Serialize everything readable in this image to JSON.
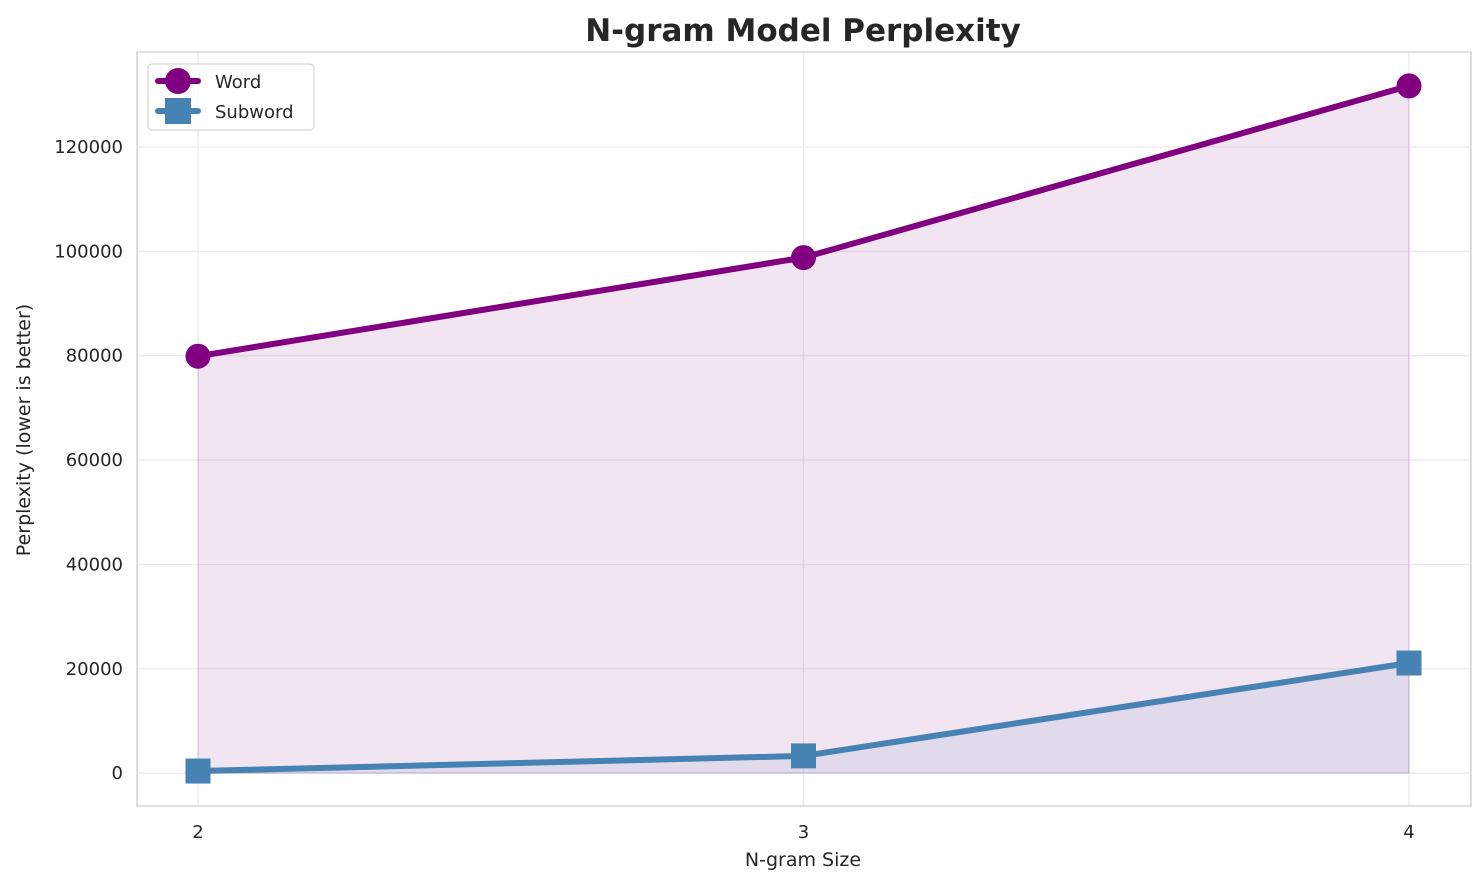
{
  "chart_data": {
    "type": "line",
    "title": "N-gram Model Perplexity",
    "xlabel": "N-gram Size",
    "ylabel": "Perplexity (lower is better)",
    "x": [
      2,
      3,
      4
    ],
    "x_ticks": [
      "2",
      "3",
      "4"
    ],
    "y_ticks": [
      "0",
      "20000",
      "40000",
      "60000",
      "80000",
      "100000",
      "120000"
    ],
    "ylim": [
      -6300,
      138200
    ],
    "grid": true,
    "legend_position": "top-left",
    "filled_to_zero": true,
    "series": [
      {
        "name": "Word",
        "values": [
          79900,
          98800,
          131700
        ],
        "color": "#800080",
        "marker": "circle"
      },
      {
        "name": "Subword",
        "values": [
          400,
          3300,
          21100
        ],
        "color": "#4682b4",
        "marker": "square"
      }
    ]
  }
}
